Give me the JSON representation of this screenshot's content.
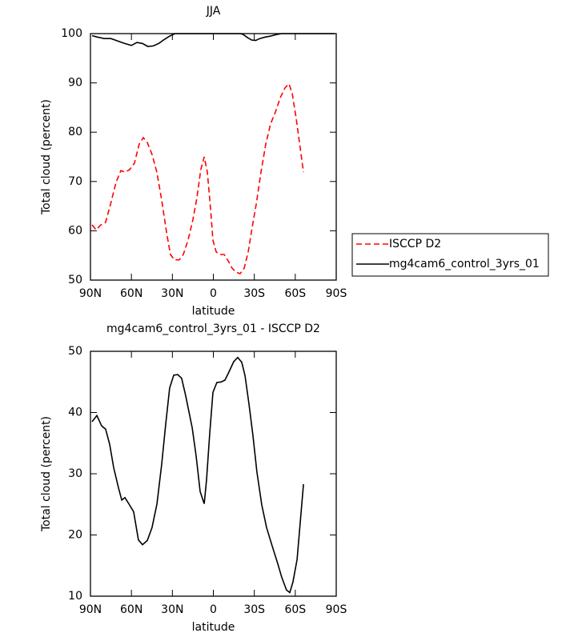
{
  "chart_data": [
    {
      "type": "line",
      "title": "JJA",
      "xlabel": "latitude",
      "ylabel": "Total cloud (percent)",
      "xlim": [
        90,
        -90
      ],
      "xticks": [
        {
          "value": 90,
          "label": "90N"
        },
        {
          "value": 60,
          "label": "60N"
        },
        {
          "value": 30,
          "label": "30N"
        },
        0,
        {
          "value": -30,
          "label": "30S"
        },
        {
          "value": -60,
          "label": "60S"
        },
        {
          "value": -90,
          "label": "90S"
        }
      ],
      "ylim": [
        50,
        100
      ],
      "yticks": [
        50,
        60,
        70,
        80,
        90,
        100
      ],
      "legend": "right",
      "series": [
        {
          "name": "ISCCP D2",
          "color": "#ff0000",
          "linestyle": "dashed",
          "x": [
            88.8,
            85.9,
            82.4,
            78.9,
            75.3,
            71.3,
            67.7,
            64.8,
            61.3,
            57.8,
            54.3,
            51.3,
            48.4,
            44.9,
            41.4,
            37.8,
            34.3,
            31.4,
            28.5,
            25.0,
            22.0,
            18.5,
            15.0,
            12.1,
            9.2,
            6.7,
            4.4,
            2.0,
            0.3,
            -2.1,
            -5.0,
            -7.9,
            -10.9,
            -13.8,
            -16.7,
            -19.6,
            -22.6,
            -25.5,
            -28.4,
            -31.4,
            -34.9,
            -38.4,
            -41.9,
            -45.5,
            -49.0,
            -52.5,
            -55.4,
            -57.8,
            -60.7,
            -63.6,
            -66.0
          ],
          "values": [
            61.2,
            60.2,
            61.2,
            61.7,
            65.4,
            69.8,
            72.2,
            71.9,
            72.4,
            73.7,
            77.6,
            78.9,
            77.9,
            75.5,
            71.9,
            66.2,
            59.7,
            55.2,
            54.1,
            54.1,
            55.2,
            58.1,
            62.2,
            66.6,
            72.4,
            75.0,
            71.9,
            64.3,
            58.1,
            55.7,
            55.2,
            55.2,
            53.9,
            52.4,
            51.6,
            51.3,
            52.4,
            55.7,
            60.6,
            65.4,
            71.9,
            77.6,
            81.7,
            84.1,
            87.0,
            89.0,
            89.8,
            87.8,
            82.8,
            76.8,
            71.9
          ]
        },
        {
          "name": "mg4cam6_control_3yrs_01",
          "color": "#000000",
          "linestyle": "solid",
          "x": [
            88.8,
            85,
            80,
            75,
            70,
            65,
            60,
            56,
            52,
            48,
            44,
            40,
            36,
            32,
            28,
            20,
            10,
            0,
            -10,
            -20,
            -22,
            -25,
            -28,
            -31,
            -34,
            -38,
            -42,
            -46,
            -50,
            -60,
            -70,
            -80,
            -88.8
          ],
          "values": [
            99.6,
            99.3,
            99.0,
            99.0,
            98.5,
            98.0,
            97.6,
            98.2,
            98.0,
            97.4,
            97.5,
            98.0,
            98.8,
            99.5,
            100,
            100,
            100,
            100,
            100,
            100,
            99.8,
            99.2,
            98.7,
            98.6,
            99.0,
            99.3,
            99.5,
            99.8,
            100,
            100,
            100,
            100,
            100
          ]
        }
      ]
    },
    {
      "type": "line",
      "title": "mg4cam6_control_3yrs_01 - ISCCP D2",
      "xlabel": "latitude",
      "ylabel": "Total cloud (percent)",
      "xlim": [
        90,
        -90
      ],
      "xticks": [
        {
          "value": 90,
          "label": "90N"
        },
        {
          "value": 60,
          "label": "60N"
        },
        {
          "value": 30,
          "label": "30N"
        },
        0,
        {
          "value": -30,
          "label": "30S"
        },
        {
          "value": -60,
          "label": "60S"
        },
        {
          "value": -90,
          "label": "90S"
        }
      ],
      "ylim": [
        10,
        50
      ],
      "yticks": [
        10,
        20,
        30,
        40,
        50
      ],
      "series": [
        {
          "color": "#000000",
          "linestyle": "solid",
          "x": [
            88.8,
            85.3,
            81.8,
            78.9,
            75.9,
            73.0,
            69.5,
            67.1,
            64.8,
            61.9,
            58.4,
            54.9,
            51.9,
            48.4,
            44.9,
            41.3,
            37.8,
            34.9,
            32.0,
            29.0,
            26.1,
            23.2,
            20.2,
            15.5,
            12.6,
            9.7,
            6.7,
            5.0,
            2.6,
            0.3,
            -2.6,
            -5.6,
            -8.5,
            -11.4,
            -14.9,
            -17.9,
            -20.8,
            -23.2,
            -26.1,
            -29.0,
            -31.9,
            -35.5,
            -39.0,
            -43.1,
            -47.2,
            -50.1,
            -53.6,
            -56.0,
            -58.3,
            -61.3,
            -66.0
          ],
          "values": [
            38.5,
            39.5,
            37.8,
            37.3,
            34.8,
            31.0,
            27.7,
            25.7,
            26.1,
            25.1,
            23.8,
            19.2,
            18.4,
            19.1,
            21.2,
            25.1,
            31.6,
            38.1,
            44.0,
            46.1,
            46.2,
            45.6,
            42.7,
            37.5,
            32.9,
            27.1,
            25.1,
            29.0,
            36.8,
            43.3,
            44.9,
            45.0,
            45.3,
            46.6,
            48.3,
            49.0,
            48.2,
            46.0,
            41.4,
            36.2,
            30.3,
            24.9,
            21.2,
            18.2,
            15.3,
            13.1,
            11.0,
            10.6,
            12.3,
            16.0,
            28.3
          ]
        }
      ]
    }
  ]
}
